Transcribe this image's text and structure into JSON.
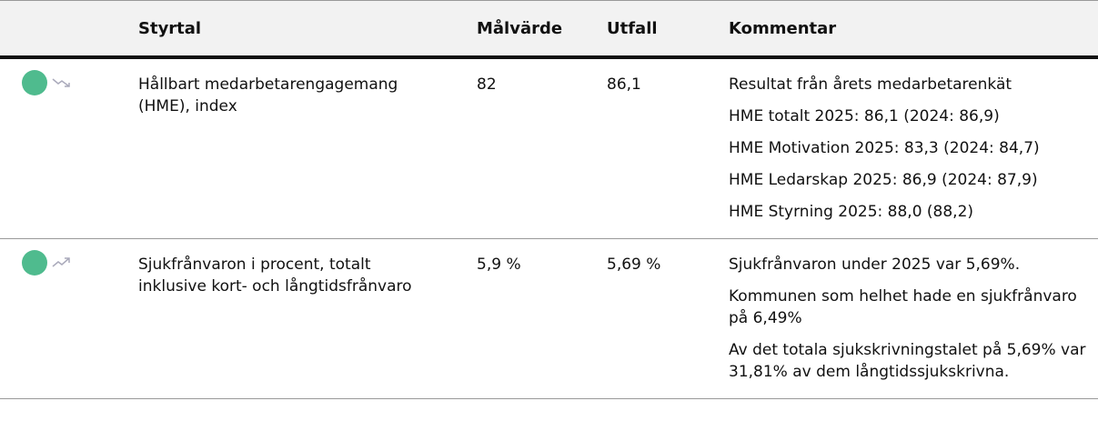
{
  "table": {
    "headers": [
      "Styrtal",
      "Målvärde",
      "Utfall",
      "Kommentar"
    ],
    "rows": [
      {
        "name": "Hållbart medarbetarengagemang (HME), index",
        "target": "82",
        "outcome": "86,1",
        "comments": [
          "Resultat från årets medarbetarenkät",
          "HME totalt 2025: 86,1  (2024: 86,9)",
          "HME Motivation 2025: 83,3  (2024: 84,7)",
          "HME Ledarskap 2025: 86,9 (2024: 87,9)",
          "HME Styrning 2025: 88,0 (88,2)"
        ]
      },
      {
        "name": "Sjukfrånvaron i procent, totalt inklusive kort- och långtidsfrånvaro",
        "target": "5,9 %",
        "outcome": "5,69 %",
        "comments": [
          "Sjukfrånvaron under 2025 var 5,69%.",
          "Kommunen som helhet hade en sjukfrånvaro på 6,49%",
          "Av det totala sjukskrivningstalet på 5,69% var 31,81% av dem långtidssjukskrivna."
        ]
      }
    ]
  }
}
